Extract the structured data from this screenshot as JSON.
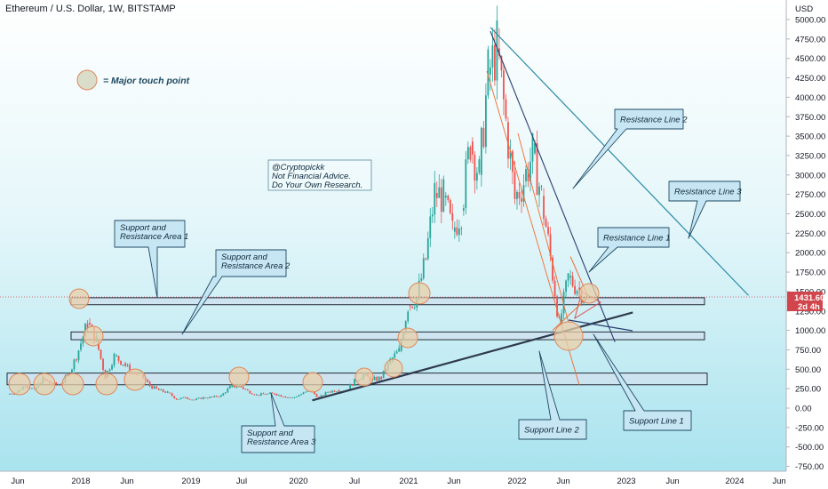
{
  "header": {
    "title": "Ethereum / U.S. Dollar, 1W, BITSTAMP"
  },
  "axis": {
    "currency": "USD"
  },
  "colors": {
    "bg_top": "#ffffff",
    "bg_bottom": "#a9e3ee",
    "bull": "#26a69a",
    "bear": "#ef5350",
    "price_tag": "#d1454c",
    "area_fill": "#cfe2f0",
    "touch_fill": "#e9cfa8",
    "touch_stroke": "#e0885a",
    "line_dark": "#2f3a4d",
    "line_teal": "#2a8aa8",
    "line_navy": "#2b3f73",
    "line_orange": "#f26a2e"
  },
  "legend": {
    "label": "= Major touch point"
  },
  "watermark": {
    "lines": [
      "@Cryptopickk",
      "Not Financial Advice.",
      "Do Your Own Research."
    ]
  },
  "price_tag": {
    "value": "1431.60",
    "countdown": "2d 4h"
  },
  "callouts": [
    {
      "id": "resistance-line-2",
      "text": [
        "Resistance Line 2"
      ]
    },
    {
      "id": "resistance-line-3",
      "text": [
        "Resistance Line 3"
      ]
    },
    {
      "id": "resistance-line-1",
      "text": [
        "Resistance Line 1"
      ]
    },
    {
      "id": "support-resistance-area-1",
      "text": [
        "Support and",
        "Resistance Area 1"
      ]
    },
    {
      "id": "support-resistance-area-2",
      "text": [
        "Support and",
        "Resistance Area 2"
      ]
    },
    {
      "id": "support-resistance-area-3",
      "text": [
        "Support and",
        "Resistance Area 3"
      ]
    },
    {
      "id": "support-line-1",
      "text": [
        "Support Line 1"
      ]
    },
    {
      "id": "support-line-2",
      "text": [
        "Support Line 2"
      ]
    }
  ],
  "chart_data": {
    "type": "candlestick",
    "title": "Ethereum / U.S. Dollar, 1W, BITSTAMP",
    "ylabel": "USD",
    "y_ticks": [
      5000,
      4750,
      4500,
      4250,
      4000,
      3750,
      3500,
      3250,
      3000,
      2750,
      2500,
      2250,
      2000,
      1750,
      1500,
      1250,
      1000,
      750,
      500,
      250,
      0,
      -250,
      -500,
      -750
    ],
    "x_ticks": [
      "Jun",
      "2018",
      "Jun",
      "2019",
      "Jul",
      "2020",
      "Jul",
      "2021",
      "Jun",
      "2022",
      "Jun",
      "2023",
      "Jun",
      "2024",
      "Jun"
    ],
    "ylim": [
      -800,
      5000
    ],
    "last_price": 1431.6,
    "series": [
      {
        "name": "",
        "x": [
          "2017-05",
          "2017-06",
          "2017-07",
          "2017-08",
          "2017-09",
          "2017-10",
          "2017-11",
          "2017-12",
          "2018-01",
          "2018-02",
          "2018-03",
          "2018-04",
          "2018-05",
          "2018-06",
          "2018-07",
          "2018-08",
          "2018-09",
          "2018-10",
          "2018-11",
          "2018-12",
          "2019-01",
          "2019-02",
          "2019-03",
          "2019-04",
          "2019-05",
          "2019-06",
          "2019-07",
          "2019-08",
          "2019-09",
          "2019-10",
          "2019-11",
          "2019-12",
          "2020-01",
          "2020-02",
          "2020-03",
          "2020-04",
          "2020-05",
          "2020-06",
          "2020-07",
          "2020-08",
          "2020-09",
          "2020-10",
          "2020-11",
          "2020-12",
          "2021-01",
          "2021-02",
          "2021-03",
          "2021-04",
          "2021-05",
          "2021-06",
          "2021-07",
          "2021-08",
          "2021-09",
          "2021-10",
          "2021-11",
          "2021-12",
          "2022-01",
          "2022-02",
          "2022-03",
          "2022-04",
          "2022-05",
          "2022-06",
          "2022-07",
          "2022-08",
          "2022-09"
        ],
        "values": [
          200,
          300,
          230,
          380,
          300,
          310,
          450,
          750,
          1100,
          870,
          400,
          670,
          580,
          455,
          435,
          285,
          230,
          200,
          115,
          135,
          105,
          135,
          140,
          160,
          270,
          290,
          220,
          170,
          180,
          185,
          150,
          130,
          180,
          225,
          135,
          210,
          230,
          225,
          345,
          430,
          360,
          390,
          610,
          735,
          1320,
          1420,
          1920,
          2770,
          2710,
          2270,
          2540,
          3430,
          3000,
          4290,
          4630,
          3680,
          2690,
          2920,
          3280,
          2730,
          1940,
          1070,
          1680,
          1550,
          1431.6
        ]
      }
    ],
    "zones": [
      {
        "label": "Support and Resistance Area 1",
        "range": [
          1330,
          1420
        ]
      },
      {
        "label": "Support and Resistance Area 2",
        "range": [
          880,
          980
        ]
      },
      {
        "label": "Support and Resistance Area 3",
        "range": [
          300,
          450
        ]
      }
    ],
    "trend_lines": [
      {
        "label": "Support Line 2",
        "from": [
          "2020-03",
          100
        ],
        "to": [
          "2023-03",
          1230
        ]
      },
      {
        "label": "Resistance Line 3",
        "from": [
          "2021-11",
          4900
        ],
        "to": [
          "2024-04",
          1450
        ]
      },
      {
        "label": "Resistance Line 2",
        "from": [
          "2021-11",
          4850
        ],
        "to": [
          "2023-01",
          850
        ]
      },
      {
        "label": "Resistance Line 1",
        "from": [
          "2022-08",
          1950
        ],
        "to": [
          "2022-10",
          1430
        ]
      },
      {
        "label": "Support Line 1",
        "from": [
          "2022-06",
          1000
        ],
        "to": [
          "2022-10",
          1430
        ]
      }
    ]
  }
}
